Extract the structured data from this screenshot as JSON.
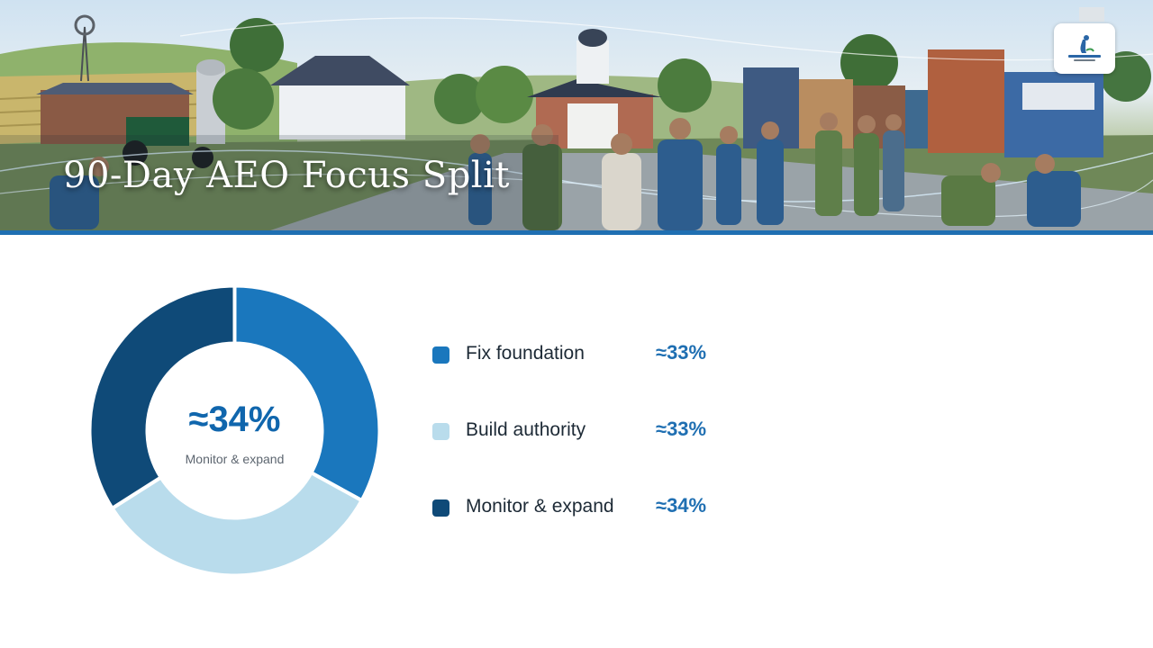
{
  "slide": {
    "title": "90-Day AEO Focus Split"
  },
  "colors": {
    "accent": "#1f6fb2",
    "fix_foundation": "#1a77bd",
    "build_authority": "#b9dcec",
    "monitor_expand": "#0f4a78"
  },
  "chart_data": {
    "type": "pie",
    "donut": true,
    "categories": [
      "Fix foundation",
      "Build authority",
      "Monitor & expand"
    ],
    "values": [
      33,
      33,
      34
    ],
    "value_labels": [
      "≈33%",
      "≈33%",
      "≈34%"
    ],
    "colors": [
      "#1a77bd",
      "#b9dcec",
      "#0f4a78"
    ],
    "center_value": "≈34%",
    "center_label": "Monitor & expand",
    "legend_position": "right"
  }
}
